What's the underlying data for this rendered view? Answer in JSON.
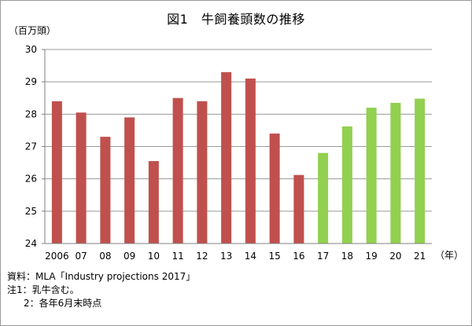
{
  "title": "図1　牛飼養頭数の推移",
  "y_unit": "（百万頭）",
  "x_unit": "（年）",
  "notes": {
    "source": "資料：MLA「Industry projections 2017」",
    "note1": "注1：乳牛含む。",
    "note2": "2：各年6月末時点"
  },
  "colors": {
    "actual": "#C0504D",
    "projection": "#92D050",
    "grid": "#999999"
  },
  "chart_data": {
    "type": "bar",
    "categories": [
      "2006",
      "07",
      "08",
      "09",
      "10",
      "11",
      "12",
      "13",
      "14",
      "15",
      "16",
      "17",
      "18",
      "19",
      "20",
      "21"
    ],
    "series": [
      {
        "values": [
          28.4,
          28.05,
          27.3,
          27.9,
          26.55,
          28.5,
          28.4,
          29.3,
          29.1,
          27.4,
          26.12,
          26.8,
          27.62,
          28.2,
          28.35,
          28.48
        ]
      }
    ],
    "bar_colors": [
      "actual",
      "actual",
      "actual",
      "actual",
      "actual",
      "actual",
      "actual",
      "actual",
      "actual",
      "actual",
      "actual",
      "projection",
      "projection",
      "projection",
      "projection",
      "projection"
    ],
    "ylim": [
      24,
      30
    ],
    "yticks": [
      24,
      25,
      26,
      27,
      28,
      29,
      30
    ],
    "grid": true
  }
}
